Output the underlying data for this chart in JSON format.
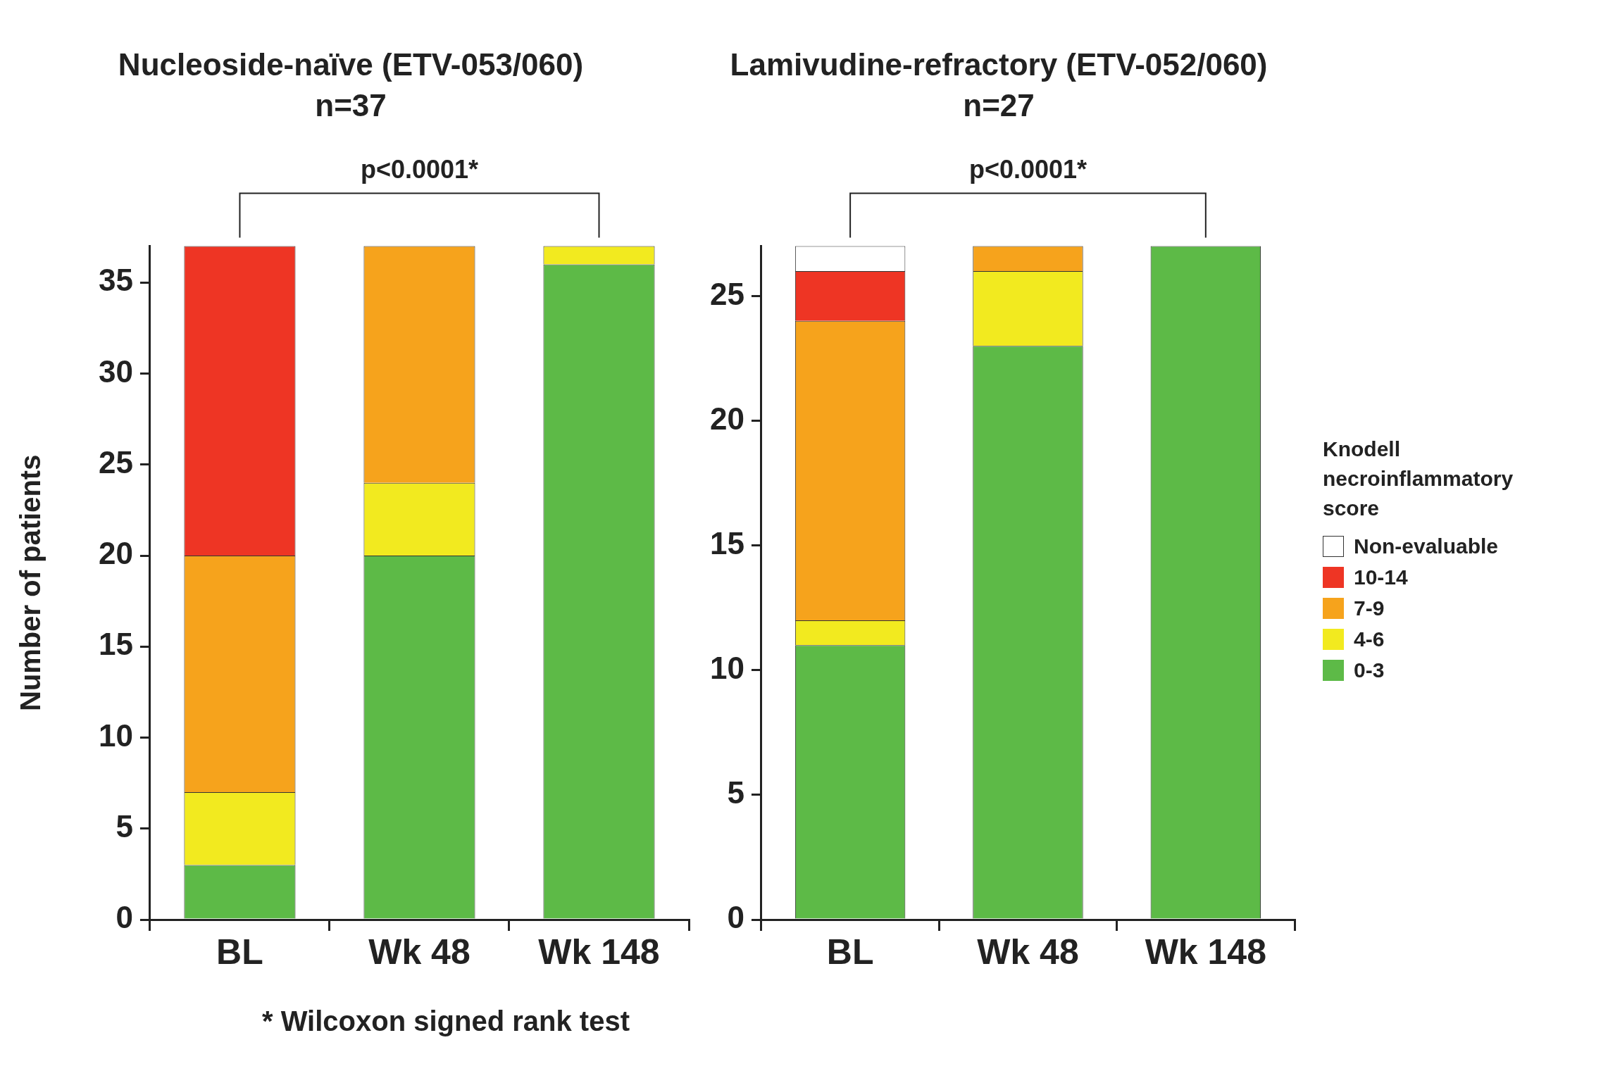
{
  "chart_data": [
    {
      "type": "bar",
      "title": "Nucleoside-naïve (ETV-053/060)",
      "subtitle": "n=37",
      "ylabel": "Number of patients",
      "categories": [
        "BL",
        "Wk 48",
        "Wk 148"
      ],
      "stacked": true,
      "ylim": [
        0,
        37
      ],
      "yticks": [
        0,
        5,
        10,
        15,
        20,
        25,
        30,
        35
      ],
      "legend": false,
      "annotations": [
        "p<0.0001*",
        "* Wilcoxon signed rank test"
      ],
      "series": [
        {
          "color": "#5dba47",
          "values": [
            3,
            20,
            36
          ]
        },
        {
          "color": "#f2ea1f",
          "values": [
            4,
            4,
            1
          ]
        },
        {
          "color": "#f6a31c",
          "values": [
            13,
            13,
            0
          ]
        },
        {
          "color": "#ee3524",
          "values": [
            17,
            0,
            0
          ]
        }
      ]
    },
    {
      "type": "bar",
      "title": "Lamivudine-refractory (ETV-052/060)",
      "subtitle": "n=27",
      "categories": [
        "BL",
        "Wk 48",
        "Wk 148"
      ],
      "stacked": true,
      "ylim": [
        0,
        27
      ],
      "yticks": [
        0,
        5,
        10,
        15,
        20,
        25
      ],
      "legend": "right",
      "legend_title": "Knodell necroinflammatory score",
      "annotations": [
        "p<0.0001*"
      ],
      "series": [
        {
          "name": "0-3",
          "color": "#5dba47",
          "values": [
            11,
            23,
            27
          ]
        },
        {
          "name": "4-6",
          "color": "#f2ea1f",
          "values": [
            1,
            3,
            0
          ]
        },
        {
          "name": "7-9",
          "color": "#f6a31c",
          "values": [
            12,
            1,
            0
          ]
        },
        {
          "name": "10-14",
          "color": "#ee3524",
          "values": [
            2,
            0,
            0
          ]
        },
        {
          "name": "Non-evaluable",
          "color": "#ffffff",
          "values": [
            1,
            0,
            0
          ]
        }
      ]
    }
  ]
}
